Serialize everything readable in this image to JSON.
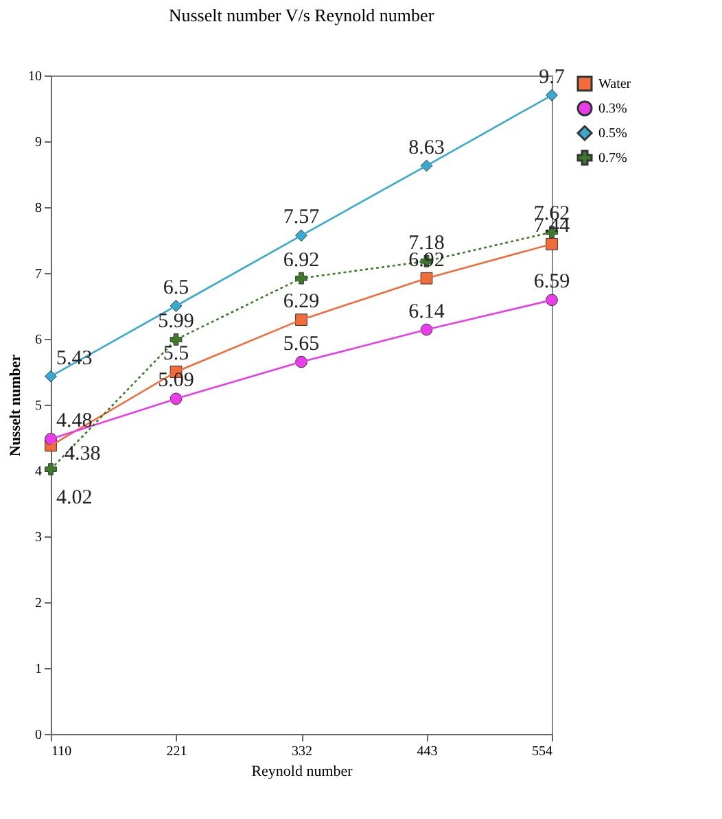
{
  "chart_data": {
    "type": "line",
    "title": "Nusselt number V/s Reynold number",
    "xlabel": "Reynold number",
    "ylabel": "Nusselt number",
    "x": [
      110,
      221,
      332,
      443,
      554
    ],
    "series": [
      {
        "name": "Water",
        "color": "#f26b3a",
        "marker": "square",
        "line_style": "solid",
        "values": [
          4.38,
          5.5,
          6.29,
          6.92,
          7.44
        ]
      },
      {
        "name": "0.3%",
        "color": "#e83de8",
        "marker": "circle",
        "line_style": "solid",
        "values": [
          4.48,
          5.09,
          5.65,
          6.14,
          6.59
        ]
      },
      {
        "name": "0.5%",
        "color": "#3aa9d0",
        "marker": "diamond",
        "line_style": "solid",
        "values": [
          5.43,
          6.5,
          7.57,
          8.63,
          9.7
        ]
      },
      {
        "name": "0.7%",
        "color": "#3d7a2a",
        "marker": "cross",
        "line_style": "dotted",
        "values": [
          4.02,
          5.99,
          6.92,
          7.18,
          7.62
        ]
      }
    ],
    "xlim": [
      110,
      554
    ],
    "xticks": [
      110,
      221,
      332,
      443,
      554
    ],
    "ylim": [
      0,
      10
    ],
    "yticks": [
      0,
      1,
      2,
      3,
      4,
      5,
      6,
      7,
      8,
      9,
      10
    ],
    "grid": false,
    "legend": "top right",
    "data_labels": true
  }
}
